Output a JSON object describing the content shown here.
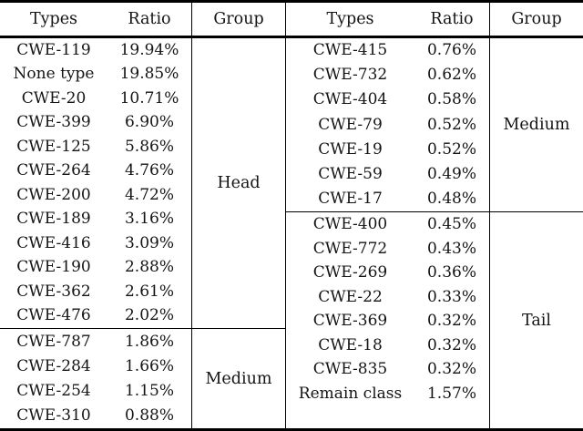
{
  "table": {
    "left": {
      "headers": {
        "types": "Types",
        "ratio": "Ratio",
        "group": "Group"
      },
      "sections": [
        {
          "group": "Head",
          "rows": [
            {
              "type": "CWE-119",
              "ratio": "19.94%"
            },
            {
              "type": "None type",
              "ratio": "19.85%"
            },
            {
              "type": "CWE-20",
              "ratio": "10.71%"
            },
            {
              "type": "CWE-399",
              "ratio": "6.90%"
            },
            {
              "type": "CWE-125",
              "ratio": "5.86%"
            },
            {
              "type": "CWE-264",
              "ratio": "4.76%"
            },
            {
              "type": "CWE-200",
              "ratio": "4.72%"
            },
            {
              "type": "CWE-189",
              "ratio": "3.16%"
            },
            {
              "type": "CWE-416",
              "ratio": "3.09%"
            },
            {
              "type": "CWE-190",
              "ratio": "2.88%"
            },
            {
              "type": "CWE-362",
              "ratio": "2.61%"
            },
            {
              "type": "CWE-476",
              "ratio": "2.02%"
            }
          ]
        },
        {
          "group": "Medium",
          "rows": [
            {
              "type": "CWE-787",
              "ratio": "1.86%"
            },
            {
              "type": "CWE-284",
              "ratio": "1.66%"
            },
            {
              "type": "CWE-254",
              "ratio": "1.15%"
            },
            {
              "type": "CWE-310",
              "ratio": "0.88%"
            }
          ]
        }
      ]
    },
    "right": {
      "headers": {
        "types": "Types",
        "ratio": "Ratio",
        "group": "Group"
      },
      "sections": [
        {
          "group": "Medium",
          "rows": [
            {
              "type": "CWE-415",
              "ratio": "0.76%"
            },
            {
              "type": "CWE-732",
              "ratio": "0.62%"
            },
            {
              "type": "CWE-404",
              "ratio": "0.58%"
            },
            {
              "type": "CWE-79",
              "ratio": "0.52%"
            },
            {
              "type": "CWE-19",
              "ratio": "0.52%"
            },
            {
              "type": "CWE-59",
              "ratio": "0.49%"
            },
            {
              "type": "CWE-17",
              "ratio": "0.48%"
            }
          ]
        },
        {
          "group": "Tail",
          "rows": [
            {
              "type": "CWE-400",
              "ratio": "0.45%"
            },
            {
              "type": "CWE-772",
              "ratio": "0.43%"
            },
            {
              "type": "CWE-269",
              "ratio": "0.36%"
            },
            {
              "type": "CWE-22",
              "ratio": "0.33%"
            },
            {
              "type": "CWE-369",
              "ratio": "0.32%"
            },
            {
              "type": "CWE-18",
              "ratio": "0.32%"
            },
            {
              "type": "CWE-835",
              "ratio": "0.32%"
            },
            {
              "type": "Remain class",
              "ratio": "1.57%"
            }
          ]
        }
      ]
    },
    "colors": {
      "rule": "#000000",
      "text": "#141414",
      "background": "#ffffff"
    }
  }
}
